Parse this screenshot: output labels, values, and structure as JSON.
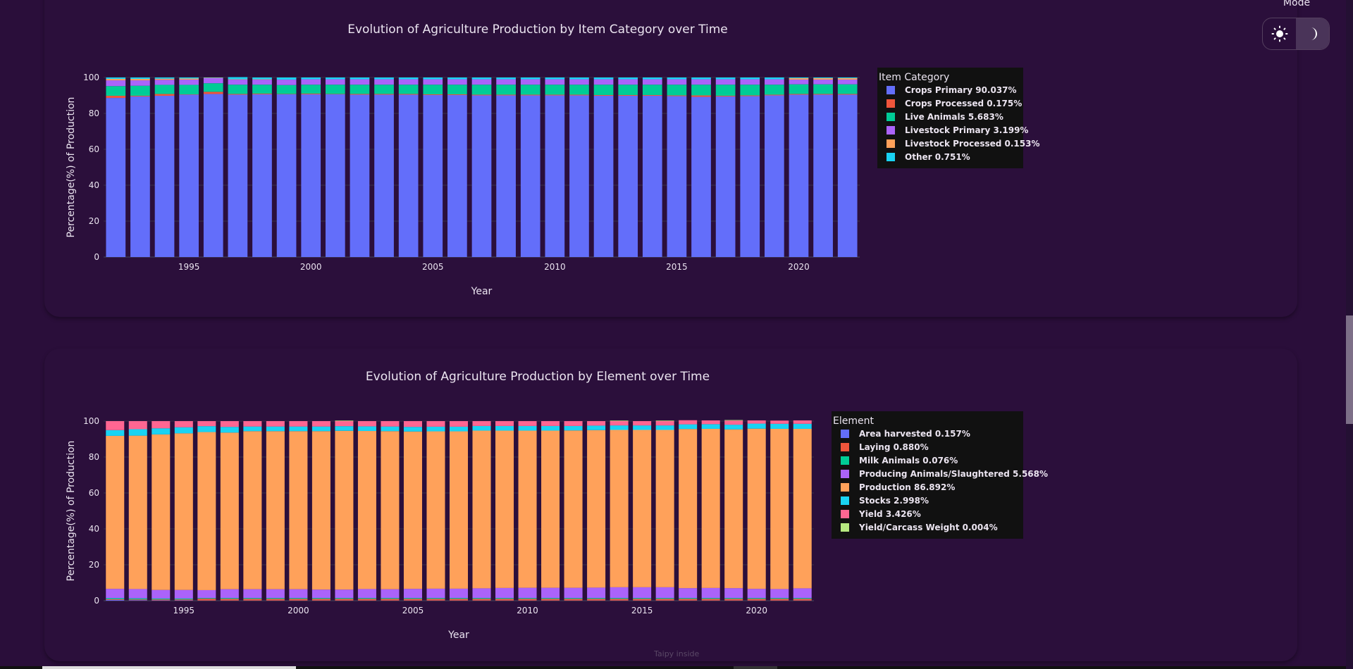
{
  "mode_toggle": {
    "label": "Mode",
    "options": [
      {
        "name": "light",
        "icon": "sun-icon",
        "active": false
      },
      {
        "name": "dark",
        "icon": "moon-icon",
        "active": true
      }
    ]
  },
  "footer": {
    "text": "Taipy inside"
  },
  "colors": {
    "background": "#2a0e3a",
    "legend_bg": "#111111"
  },
  "chart_data": [
    {
      "type": "bar",
      "stacked": true,
      "title": "Evolution of Agriculture Production by Item Category over Time",
      "xlabel": "Year",
      "ylabel": "Percentage(%) of Production",
      "ylim": [
        0,
        100
      ],
      "yticks": [
        0,
        20,
        40,
        60,
        80,
        100
      ],
      "xticks": [
        1995,
        2000,
        2005,
        2010,
        2015,
        2020
      ],
      "grid": true,
      "legend_title": "Item Category",
      "legend_position": "right",
      "categories": [
        1992,
        1993,
        1994,
        1995,
        1996,
        1997,
        1998,
        1999,
        2000,
        2001,
        2002,
        2003,
        2004,
        2005,
        2006,
        2007,
        2008,
        2009,
        2010,
        2011,
        2012,
        2013,
        2014,
        2015,
        2016,
        2017,
        2018,
        2019,
        2020,
        2021,
        2022
      ],
      "series": [
        {
          "name": "Crops Primary",
          "legend": "Crops Primary 90.037%",
          "color": "#636efa",
          "values": [
            88.6,
            89.4,
            89.8,
            90.4,
            90.8,
            90.4,
            90.6,
            90.6,
            90.6,
            90.6,
            90.4,
            90.4,
            90.4,
            90.2,
            90.2,
            90.0,
            90.0,
            90.0,
            90.0,
            90.0,
            89.8,
            89.8,
            89.8,
            89.6,
            89.2,
            89.4,
            89.6,
            90.0,
            90.4,
            90.4,
            90.4
          ]
        },
        {
          "name": "Crops Processed",
          "legend": "Crops Processed 0.175%",
          "color": "#ef553b",
          "values": [
            1.2,
            0.4,
            1.0,
            0.2,
            1.2,
            0.4,
            0.4,
            0.2,
            0.4,
            0.2,
            0.4,
            0.4,
            0.4,
            0.4,
            0.4,
            0.4,
            0.4,
            0.4,
            0.4,
            0.4,
            0.4,
            0.4,
            0.4,
            0.4,
            0.8,
            0.4,
            0.4,
            0.4,
            0.4,
            0.4,
            0.4
          ]
        },
        {
          "name": "Live Animals",
          "legend": "Live Animals 5.683%",
          "color": "#00cc96",
          "values": [
            5.4,
            5.6,
            5.1,
            5.3,
            4.8,
            5.2,
            5.0,
            5.0,
            5.0,
            5.2,
            5.2,
            5.2,
            5.2,
            5.4,
            5.4,
            5.6,
            5.6,
            5.6,
            5.6,
            5.6,
            5.8,
            5.8,
            5.8,
            6.0,
            6.0,
            6.2,
            6.0,
            5.6,
            5.4,
            5.4,
            5.4
          ]
        },
        {
          "name": "Livestock Primary",
          "legend": "Livestock Primary 3.199%",
          "color": "#ab63fa",
          "values": [
            3.2,
            3.0,
            2.8,
            2.9,
            2.8,
            2.8,
            2.8,
            3.0,
            3.0,
            3.0,
            3.0,
            3.0,
            3.0,
            3.0,
            3.0,
            3.0,
            3.0,
            3.0,
            3.0,
            3.0,
            3.0,
            3.0,
            3.0,
            3.0,
            3.0,
            3.0,
            3.0,
            3.0,
            2.6,
            2.6,
            2.6
          ]
        },
        {
          "name": "Livestock Processed",
          "legend": "Livestock Processed 0.153%",
          "color": "#ffa15a",
          "values": [
            0.8,
            0.8,
            0.6,
            0.6,
            0.2,
            0.2,
            0.2,
            0.0,
            0.0,
            0.0,
            0.0,
            0.0,
            0.0,
            0.0,
            0.0,
            0.0,
            0.0,
            0.0,
            0.0,
            0.0,
            0.0,
            0.0,
            0.0,
            0.0,
            0.0,
            0.0,
            0.0,
            0.0,
            0.8,
            0.8,
            0.8
          ]
        },
        {
          "name": "Other",
          "legend": "Other 0.751%",
          "color": "#19d3f3",
          "values": [
            0.8,
            0.8,
            0.7,
            0.6,
            0.2,
            1.2,
            1.0,
            1.2,
            1.0,
            1.0,
            1.0,
            1.0,
            1.0,
            1.0,
            1.0,
            1.0,
            1.0,
            1.0,
            1.0,
            1.0,
            1.0,
            1.0,
            1.0,
            1.0,
            1.0,
            1.0,
            1.0,
            1.0,
            0.4,
            0.4,
            0.4
          ]
        }
      ]
    },
    {
      "type": "bar",
      "stacked": true,
      "title": "Evolution of Agriculture Production by Element over Time",
      "xlabel": "Year",
      "ylabel": "Percentage(%) of Production",
      "ylim": [
        0,
        100
      ],
      "yticks": [
        0,
        20,
        40,
        60,
        80,
        100
      ],
      "xticks": [
        1995,
        2000,
        2005,
        2010,
        2015,
        2020
      ],
      "grid": true,
      "legend_title": "Element",
      "legend_position": "right",
      "categories": [
        1992,
        1993,
        1994,
        1995,
        1996,
        1997,
        1998,
        1999,
        2000,
        2001,
        2002,
        2003,
        2004,
        2005,
        2006,
        2007,
        2008,
        2009,
        2010,
        2011,
        2012,
        2013,
        2014,
        2015,
        2016,
        2017,
        2018,
        2019,
        2020,
        2021,
        2022
      ],
      "series": [
        {
          "name": "Area harvested",
          "legend": "Area harvested 0.157%",
          "color": "#636efa",
          "values": [
            0.4,
            0.3,
            0.2,
            0.2,
            0.1,
            0.1,
            0.1,
            0.1,
            0.1,
            0.1,
            0.1,
            0.1,
            0.1,
            0.1,
            0.1,
            0.1,
            0.1,
            0.1,
            0.1,
            0.1,
            0.1,
            0.1,
            0.1,
            0.1,
            0.1,
            0.1,
            0.1,
            0.1,
            0.1,
            0.1,
            0.1
          ]
        },
        {
          "name": "Laying",
          "legend": "Laying 0.880%",
          "color": "#ef553b",
          "values": [
            0.4,
            0.4,
            0.5,
            0.5,
            1.0,
            0.9,
            0.9,
            0.9,
            0.9,
            0.9,
            0.9,
            0.9,
            0.9,
            0.9,
            0.9,
            0.9,
            0.9,
            0.9,
            0.9,
            0.9,
            0.9,
            0.9,
            0.9,
            0.9,
            0.9,
            0.9,
            0.9,
            0.9,
            0.9,
            0.9,
            0.9
          ]
        },
        {
          "name": "Milk Animals",
          "legend": "Milk Animals 0.076%",
          "color": "#00cc96",
          "values": [
            0.6,
            0.6,
            0.5,
            0.5,
            0.4,
            0.5,
            0.5,
            0.5,
            0.5,
            0.5,
            0.5,
            0.5,
            0.5,
            0.5,
            0.5,
            0.5,
            0.5,
            0.5,
            0.5,
            0.5,
            0.5,
            0.5,
            0.5,
            0.5,
            0.5,
            0.5,
            0.5,
            0.5,
            0.5,
            0.5,
            0.5
          ]
        },
        {
          "name": "Producing Animals/Slaughtered",
          "legend": "Producing Animals/Slaughtered 5.568%",
          "color": "#ab63fa",
          "values": [
            5.2,
            5.2,
            4.8,
            4.8,
            4.4,
            4.9,
            4.9,
            4.9,
            4.9,
            4.7,
            4.7,
            5.0,
            4.9,
            5.1,
            5.2,
            5.2,
            5.4,
            5.6,
            5.7,
            5.7,
            5.7,
            5.8,
            6.0,
            6.0,
            6.0,
            5.5,
            5.6,
            5.5,
            5.1,
            5.0,
            5.4
          ]
        },
        {
          "name": "Production",
          "legend": "Production 86.892%",
          "color": "#ffa15a",
          "values": [
            85.2,
            85.4,
            86.6,
            87.2,
            88.0,
            87.2,
            88.0,
            88.0,
            88.0,
            88.2,
            88.4,
            88.0,
            88.0,
            87.6,
            87.6,
            87.6,
            87.8,
            87.6,
            87.5,
            87.5,
            87.6,
            87.7,
            87.6,
            87.6,
            87.6,
            88.6,
            88.6,
            88.4,
            89.2,
            89.2,
            88.8
          ]
        },
        {
          "name": "Stocks",
          "legend": "Stocks 2.998%",
          "color": "#19d3f3",
          "values": [
            3.2,
            3.6,
            3.4,
            3.4,
            3.3,
            3.2,
            2.6,
            2.6,
            2.6,
            2.6,
            2.6,
            2.6,
            2.6,
            2.6,
            2.6,
            2.6,
            2.6,
            2.6,
            2.6,
            2.6,
            2.5,
            2.5,
            2.5,
            2.5,
            2.5,
            2.6,
            2.6,
            2.6,
            2.8,
            2.8,
            2.8
          ]
        },
        {
          "name": "Yield",
          "legend": "Yield 3.426%",
          "color": "#ff6692",
          "values": [
            5.0,
            4.5,
            4.0,
            3.4,
            2.8,
            3.2,
            3.0,
            3.0,
            3.0,
            3.0,
            2.8,
            2.9,
            3.0,
            3.2,
            3.1,
            3.1,
            2.7,
            2.7,
            2.7,
            2.7,
            2.7,
            2.5,
            2.4,
            2.4,
            2.4,
            2.3,
            2.1,
            2.3,
            1.8,
            1.8,
            1.9
          ]
        },
        {
          "name": "Yield/Carcass Weight",
          "legend": "Yield/Carcass Weight 0.004%",
          "color": "#b6e880",
          "values": [
            0.0,
            0.0,
            0.0,
            0.0,
            0.0,
            0.0,
            0.0,
            0.0,
            0.0,
            0.0,
            0.3,
            0.0,
            0.0,
            0.0,
            0.0,
            0.0,
            0.0,
            0.0,
            0.0,
            0.0,
            0.0,
            0.0,
            0.3,
            0.0,
            0.3,
            0.0,
            0.0,
            0.3,
            0.0,
            0.0,
            0.0
          ]
        }
      ]
    }
  ]
}
